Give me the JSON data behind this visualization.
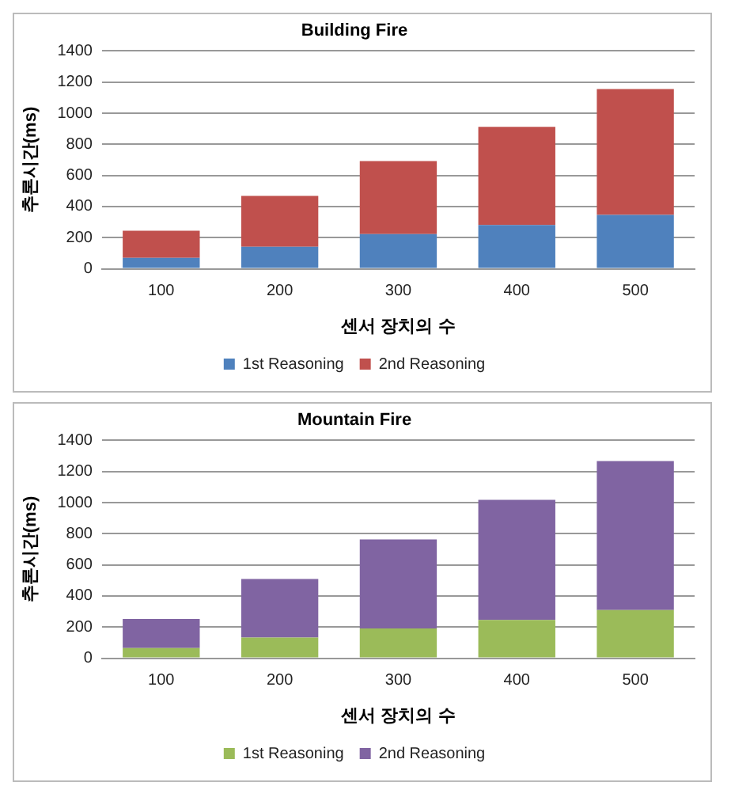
{
  "chart_data": [
    {
      "type": "bar",
      "title": "Building Fire",
      "xlabel": "센서 장치의 수",
      "ylabel": "추론시간(ms)",
      "categories": [
        "100",
        "200",
        "300",
        "400",
        "500"
      ],
      "stacked": true,
      "ylim": [
        0,
        1400
      ],
      "yticks": [
        0,
        200,
        400,
        600,
        800,
        1000,
        1200,
        1400
      ],
      "grid": "y",
      "legend": "bottom",
      "series": [
        {
          "name": "1st Reasoning",
          "color": "#4f81bd",
          "values": [
            70,
            142,
            223,
            282,
            346
          ]
        },
        {
          "name": "2nd Reasoning",
          "color": "#c0504d",
          "values": [
            175,
            327,
            469,
            630,
            809
          ]
        }
      ]
    },
    {
      "type": "bar",
      "title": "Mountain Fire",
      "xlabel": "센서 장치의 수",
      "ylabel": "추론시간(ms)",
      "categories": [
        "100",
        "200",
        "300",
        "400",
        "500"
      ],
      "stacked": true,
      "ylim": [
        0,
        1400
      ],
      "yticks": [
        0,
        200,
        400,
        600,
        800,
        1000,
        1200,
        1400
      ],
      "grid": "y",
      "legend": "bottom",
      "series": [
        {
          "name": "1st Reasoning",
          "color": "#9bbb59",
          "values": [
            66,
            133,
            191,
            246,
            310
          ]
        },
        {
          "name": "2nd Reasoning",
          "color": "#8064a2",
          "values": [
            186,
            376,
            572,
            772,
            957
          ]
        }
      ]
    }
  ]
}
